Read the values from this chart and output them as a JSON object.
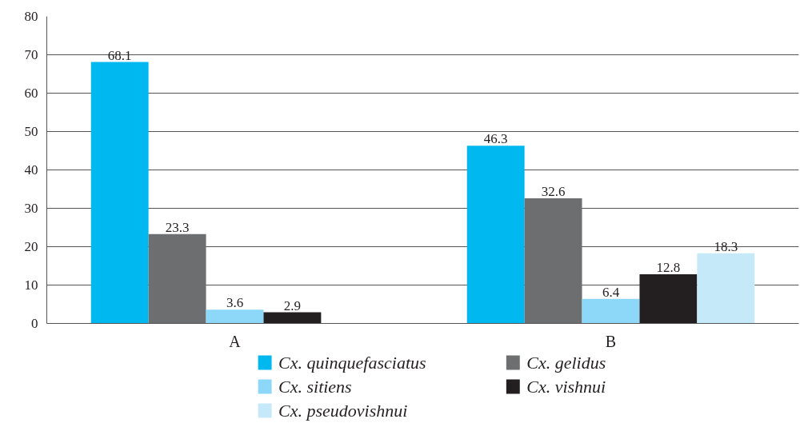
{
  "chart_data": {
    "type": "bar",
    "categories": [
      "A",
      "B"
    ],
    "series": [
      {
        "name": "Cx. quinquefasciatus",
        "color": "#00b8f0",
        "values": [
          68.1,
          46.3
        ]
      },
      {
        "name": "Cx. gelidus",
        "color": "#6d6e70",
        "values": [
          23.3,
          32.6
        ]
      },
      {
        "name": "Cx. sitiens",
        "color": "#8dd8f8",
        "values": [
          3.6,
          6.4
        ]
      },
      {
        "name": "Cx. vishnui",
        "color": "#231f20",
        "values": [
          2.9,
          12.8
        ]
      },
      {
        "name": "Cx. pseudovishnui",
        "color": "#c6e9f9",
        "values": [
          null,
          18.3
        ]
      }
    ],
    "ylim": [
      0,
      80
    ],
    "yticks": [
      0,
      10,
      20,
      30,
      40,
      50,
      60,
      70,
      80
    ],
    "grid": "y",
    "legend": "bottom",
    "data_labels": true
  }
}
